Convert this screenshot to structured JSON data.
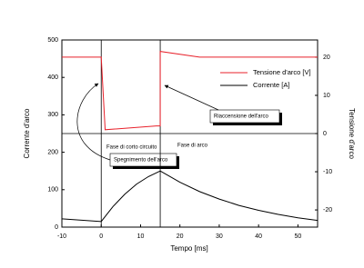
{
  "chart_data": {
    "type": "line",
    "x_label": "Tempo [ms]",
    "y_label": "Corrente d'arco",
    "y2_label": "Tensione d'arco",
    "xlim": [
      -10,
      55
    ],
    "xticks": [
      -10,
      0,
      10,
      20,
      30,
      40,
      50
    ],
    "ylim": [
      0,
      500
    ],
    "yticks": [
      0,
      100,
      200,
      300,
      400,
      500
    ],
    "y2lim": [
      -24.5,
      24.5
    ],
    "y2ticks": [
      -20,
      -10,
      0,
      10,
      20
    ],
    "legend": "upper right",
    "series": [
      {
        "name": "Tensione d'arco [V]",
        "color": "#e8202a",
        "axis": "y2",
        "x": [
          -10,
          0,
          1,
          14,
          15,
          15,
          25,
          55
        ],
        "values": [
          20,
          20,
          1,
          2,
          2,
          21.5,
          20,
          20
        ]
      },
      {
        "name": "Corrente [A]",
        "color": "#000000",
        "x": [
          -10,
          0,
          3,
          6,
          9,
          12,
          15,
          20,
          25,
          30,
          35,
          40,
          45,
          50,
          55
        ],
        "values": [
          22,
          15,
          55,
          88,
          115,
          135,
          150,
          120,
          95,
          75,
          58,
          45,
          34,
          25,
          18
        ]
      }
    ],
    "annotations": [
      "Fase di corto circuito",
      "Fase di arco",
      "Spegnimento dell'arco",
      "Riaccensione dell'arco"
    ]
  }
}
